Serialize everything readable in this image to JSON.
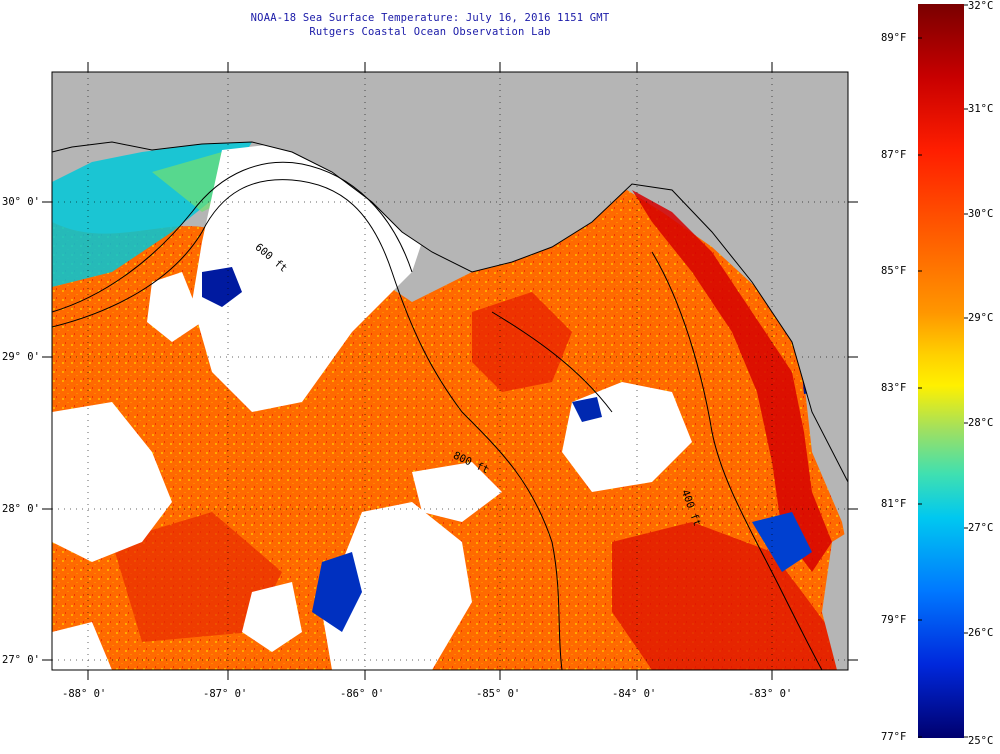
{
  "title": "NOAA-18 Sea Surface Temperature:  July 16, 2016 1151 GMT",
  "subtitle": "Rutgers Coastal Ocean Observation Lab",
  "lat_labels": [
    "30° 0'",
    "29° 0'",
    "28° 0'",
    "27° 0'"
  ],
  "lon_labels": [
    "-88° 0'",
    "-87° 0'",
    "-86° 0'",
    "-85° 0'",
    "-84° 0'",
    "-83° 0'"
  ],
  "bathymetry_labels": [
    "800 ft",
    "600 ft",
    "400 ft"
  ],
  "colorbar": {
    "celsius": [
      "32°C",
      "31°C",
      "30°C",
      "29°C",
      "28°C",
      "27°C",
      "26°C",
      "25°C"
    ],
    "fahrenheit": [
      "89°F",
      "87°F",
      "85°F",
      "83°F",
      "81°F",
      "79°F",
      "77°F"
    ],
    "range_c": [
      25,
      32
    ],
    "range_f": [
      77,
      89.6
    ]
  },
  "colors": {
    "title": "#1a1aa8",
    "land": "#b5b5b5",
    "cloud": "#ffffff",
    "warm": "#ff5000",
    "hot": "#d00000",
    "cool": "#00c8e0",
    "cold": "#001aa0"
  }
}
